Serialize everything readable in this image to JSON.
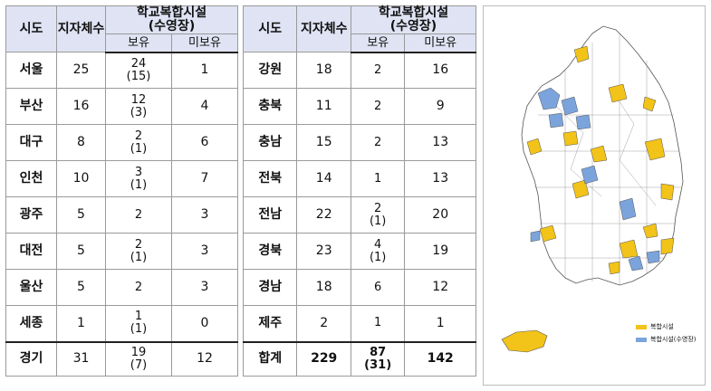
{
  "colors": {
    "header_bg": "#dfe3f3",
    "has_facility": "#f2c318",
    "has_pool": "#7ba4dc"
  },
  "headers": {
    "region": "시도",
    "count": "지자체수",
    "facility": "학교복합시설",
    "facility_sub": "(수영장)",
    "have": "보유",
    "not_have": "미보유"
  },
  "left_rows": [
    {
      "region": "서울",
      "count": "25",
      "have": "24",
      "have_pool": "(15)",
      "not_have": "1"
    },
    {
      "region": "부산",
      "count": "16",
      "have": "12",
      "have_pool": "(3)",
      "not_have": "4"
    },
    {
      "region": "대구",
      "count": "8",
      "have": "2",
      "have_pool": "(1)",
      "not_have": "6"
    },
    {
      "region": "인천",
      "count": "10",
      "have": "3",
      "have_pool": "(1)",
      "not_have": "7"
    },
    {
      "region": "광주",
      "count": "5",
      "have": "2",
      "have_pool": "",
      "not_have": "3"
    },
    {
      "region": "대전",
      "count": "5",
      "have": "2",
      "have_pool": "(1)",
      "not_have": "3"
    },
    {
      "region": "울산",
      "count": "5",
      "have": "2",
      "have_pool": "",
      "not_have": "3"
    },
    {
      "region": "세종",
      "count": "1",
      "have": "1",
      "have_pool": "(1)",
      "not_have": "0"
    },
    {
      "region": "경기",
      "count": "31",
      "have": "19",
      "have_pool": "(7)",
      "not_have": "12"
    }
  ],
  "right_rows": [
    {
      "region": "강원",
      "count": "18",
      "have": "2",
      "have_pool": "",
      "not_have": "16"
    },
    {
      "region": "충북",
      "count": "11",
      "have": "2",
      "have_pool": "",
      "not_have": "9"
    },
    {
      "region": "충남",
      "count": "15",
      "have": "2",
      "have_pool": "",
      "not_have": "13"
    },
    {
      "region": "전북",
      "count": "14",
      "have": "1",
      "have_pool": "",
      "not_have": "13"
    },
    {
      "region": "전남",
      "count": "22",
      "have": "2",
      "have_pool": "(1)",
      "not_have": "20"
    },
    {
      "region": "경북",
      "count": "23",
      "have": "4",
      "have_pool": "(1)",
      "not_have": "19"
    },
    {
      "region": "경남",
      "count": "18",
      "have": "6",
      "have_pool": "",
      "not_have": "12"
    },
    {
      "region": "제주",
      "count": "2",
      "have": "1",
      "have_pool": "",
      "not_have": "1"
    },
    {
      "region": "합계",
      "count": "229",
      "have": "87",
      "have_pool": "(31)",
      "not_have": "142"
    }
  ],
  "legend": {
    "facility_label": "복합시설",
    "pool_label": "복합시설(수영장)"
  }
}
